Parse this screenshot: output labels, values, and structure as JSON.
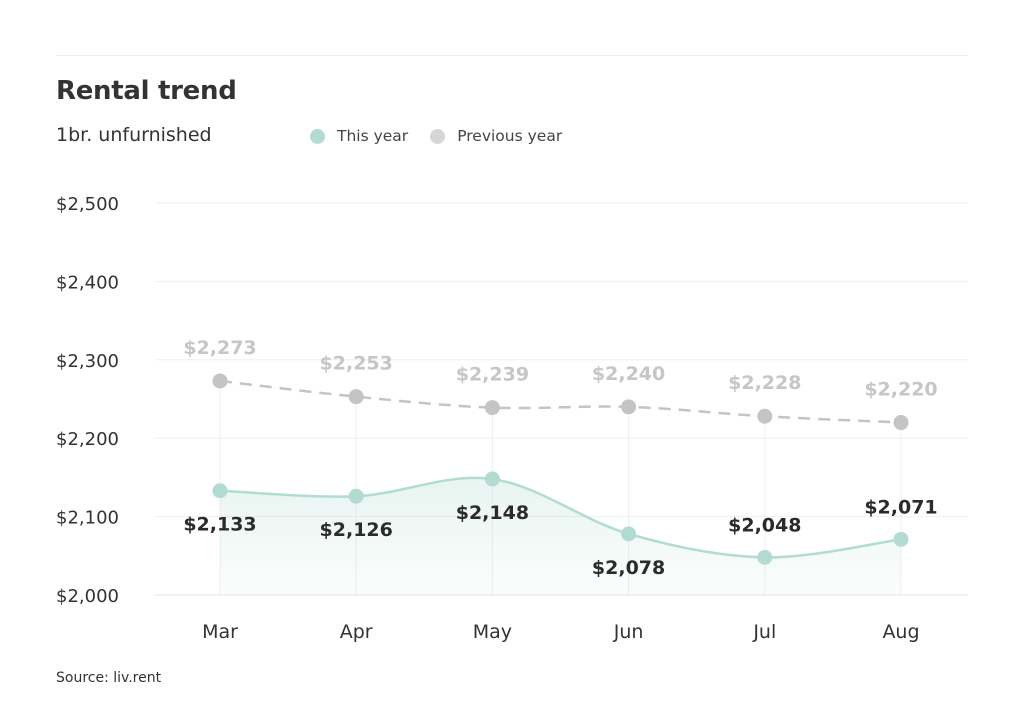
{
  "chart_data": {
    "type": "line",
    "title": "Rental trend",
    "subtitle": "1br. unfurnished",
    "categories": [
      "Mar",
      "Apr",
      "May",
      "Jun",
      "Jul",
      "Aug"
    ],
    "series": [
      {
        "name": "This year",
        "color": "#b2dcd2",
        "values": [
          2133,
          2126,
          2148,
          2078,
          2048,
          2071
        ],
        "labels": [
          "$2,133",
          "$2,126",
          "$2,148",
          "$2,078",
          "$2,048",
          "$2,071"
        ],
        "label_position": [
          "below",
          "below",
          "below",
          "below",
          "above",
          "above"
        ]
      },
      {
        "name": "Previous year",
        "color": "#c4c4c4",
        "dashed": true,
        "values": [
          2273,
          2253,
          2239,
          2240,
          2228,
          2220
        ],
        "labels": [
          "$2,273",
          "$2,253",
          "$2,239",
          "$2,240",
          "$2,228",
          "$2,220"
        ],
        "label_position": [
          "above",
          "above",
          "above",
          "above",
          "above",
          "above"
        ]
      }
    ],
    "yticks": [
      2000,
      2100,
      2200,
      2300,
      2400,
      2500
    ],
    "ytick_labels": [
      "$2,000",
      "$2,100",
      "$2,200",
      "$2,300",
      "$2,400",
      "$2,500"
    ],
    "ylim": [
      2000,
      2500
    ],
    "xlabel": "",
    "ylabel": "",
    "grid": true,
    "legend": "top"
  },
  "source": "Source: liv.rent"
}
